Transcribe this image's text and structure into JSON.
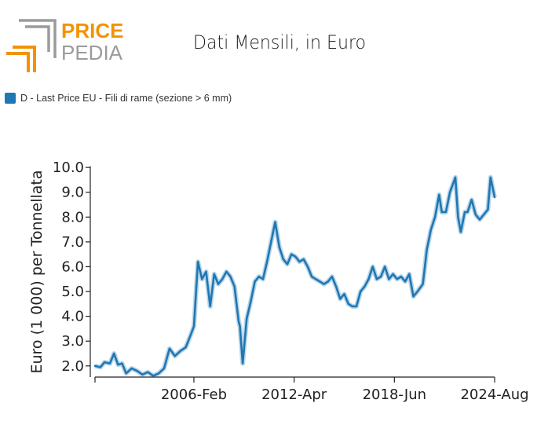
{
  "brand": {
    "logo_line1": "PRICE",
    "logo_line2": "PEDIA",
    "accent_color": "#f39200",
    "grey_color": "#9b9b9b"
  },
  "chart_data": {
    "type": "line",
    "title": "Dati Mensili, in Euro",
    "ylabel": "Euro (1 000) per Tonnellata",
    "xlabel": "",
    "ylim": [
      1.55,
      10.1
    ],
    "yticks": [
      2.0,
      3.0,
      4.0,
      5.0,
      6.0,
      7.0,
      8.0,
      9.0,
      10.0
    ],
    "x_range": [
      "2000-01",
      "2024-08"
    ],
    "xtick_labels": [
      {
        "label": "2006-Feb",
        "date": "2006-02"
      },
      {
        "label": "2012-Apr",
        "date": "2012-04"
      },
      {
        "label": "2018-Jun",
        "date": "2018-06"
      },
      {
        "label": "2024-Aug",
        "date": "2024-08"
      }
    ],
    "legend": {
      "position": "top-left",
      "entries": [
        "D - Last Price EU - Fili di rame (sezione > 6 mm)"
      ]
    },
    "grid": false,
    "series": [
      {
        "name": "D - Last Price EU - Fili di rame (sezione > 6 mm)",
        "color": "#1f77b4",
        "x": [
          "2000-01",
          "2000-05",
          "2000-08",
          "2000-12",
          "2001-03",
          "2001-06",
          "2001-09",
          "2001-12",
          "2002-04",
          "2002-08",
          "2002-12",
          "2003-04",
          "2003-08",
          "2003-12",
          "2004-04",
          "2004-08",
          "2004-12",
          "2005-04",
          "2005-08",
          "2005-12",
          "2006-02",
          "2006-05",
          "2006-08",
          "2006-11",
          "2007-02",
          "2007-05",
          "2007-08",
          "2007-11",
          "2008-02",
          "2008-05",
          "2008-08",
          "2008-11",
          "2008-12",
          "2009-02",
          "2009-05",
          "2009-08",
          "2009-11",
          "2010-02",
          "2010-05",
          "2010-08",
          "2010-11",
          "2011-02",
          "2011-05",
          "2011-08",
          "2011-11",
          "2012-02",
          "2012-05",
          "2012-08",
          "2012-11",
          "2013-02",
          "2013-05",
          "2013-08",
          "2013-11",
          "2014-02",
          "2014-05",
          "2014-08",
          "2014-11",
          "2015-02",
          "2015-05",
          "2015-08",
          "2015-11",
          "2016-02",
          "2016-05",
          "2016-08",
          "2016-11",
          "2017-02",
          "2017-05",
          "2017-08",
          "2017-11",
          "2018-02",
          "2018-05",
          "2018-08",
          "2018-11",
          "2019-02",
          "2019-05",
          "2019-08",
          "2019-11",
          "2020-03",
          "2020-06",
          "2020-09",
          "2020-12",
          "2021-03",
          "2021-05",
          "2021-08",
          "2021-11",
          "2022-03",
          "2022-05",
          "2022-07",
          "2022-10",
          "2022-12",
          "2023-03",
          "2023-06",
          "2023-09",
          "2023-12",
          "2024-03",
          "2024-05",
          "2024-08"
        ],
        "y": [
          2.0,
          1.95,
          2.15,
          2.1,
          2.5,
          2.05,
          2.1,
          1.7,
          1.9,
          1.8,
          1.65,
          1.75,
          1.6,
          1.7,
          1.9,
          2.7,
          2.4,
          2.6,
          2.75,
          3.3,
          3.6,
          6.2,
          5.5,
          5.8,
          4.4,
          5.7,
          5.3,
          5.5,
          5.8,
          5.6,
          5.2,
          3.8,
          3.6,
          2.1,
          3.9,
          4.6,
          5.4,
          5.6,
          5.5,
          6.2,
          7.0,
          7.8,
          6.8,
          6.3,
          6.1,
          6.5,
          6.4,
          6.2,
          6.3,
          6.0,
          5.6,
          5.5,
          5.4,
          5.3,
          5.4,
          5.6,
          5.2,
          4.7,
          4.9,
          4.5,
          4.4,
          4.4,
          5.0,
          5.2,
          5.5,
          6.0,
          5.5,
          5.6,
          6.0,
          5.5,
          5.7,
          5.5,
          5.6,
          5.4,
          5.7,
          4.8,
          5.0,
          5.3,
          6.7,
          7.5,
          8.0,
          8.9,
          8.2,
          8.2,
          9.0,
          9.6,
          8.0,
          7.4,
          8.2,
          8.2,
          8.7,
          8.1,
          7.9,
          8.1,
          8.3,
          9.6,
          8.8
        ]
      }
    ]
  }
}
